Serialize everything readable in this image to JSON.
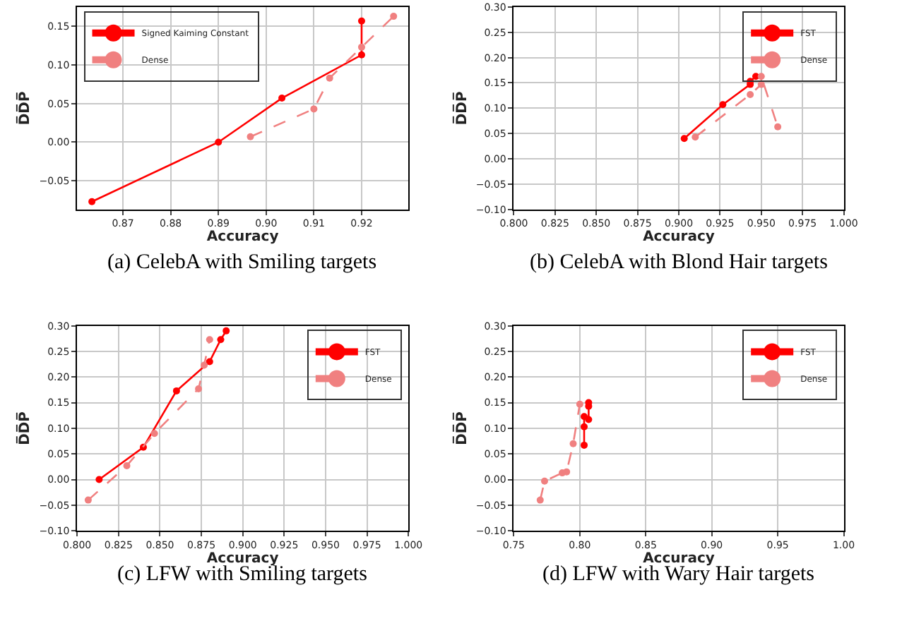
{
  "chart_data": [
    {
      "type": "line",
      "xlabel": "Accuracy",
      "ylabel": "D̅D̅P̅",
      "xlim": [
        0.8604,
        0.9298
      ],
      "ylim": [
        -0.087,
        0.175
      ],
      "xticks": [
        {
          "value": 0.87,
          "label": "0.87"
        },
        {
          "value": 0.88,
          "label": "0.88"
        },
        {
          "value": 0.89,
          "label": "0.89"
        },
        {
          "value": 0.9,
          "label": "0.90"
        },
        {
          "value": 0.91,
          "label": "0.91"
        },
        {
          "value": 0.92,
          "label": "0.92"
        }
      ],
      "yticks": [
        {
          "value": -0.05,
          "label": "−0.05"
        },
        {
          "value": 0.0,
          "label": "0.00"
        },
        {
          "value": 0.05,
          "label": "0.05"
        },
        {
          "value": 0.1,
          "label": "0.10"
        },
        {
          "value": 0.15,
          "label": "0.15"
        }
      ],
      "grid": true,
      "legend": "top left",
      "marker": "circle",
      "annotations": [
        "(a) CelebA with Smiling targets"
      ],
      "series": [
        {
          "name": "Signed Kaiming Constant",
          "color": "#ff0000",
          "line_style": "solid",
          "x": [
            0.8635,
            0.89,
            0.9033,
            0.92,
            0.92
          ],
          "values": [
            -0.077,
            0.0,
            0.057,
            0.113,
            0.157
          ]
        },
        {
          "name": "Dense",
          "color": "#f08080",
          "line_style": "dashed",
          "x": [
            0.8967,
            0.91,
            0.9133,
            0.92,
            0.9267
          ],
          "values": [
            0.007,
            0.043,
            0.083,
            0.123,
            0.163
          ]
        }
      ]
    },
    {
      "type": "line",
      "xlabel": "Accuracy",
      "ylabel": "D̅D̅P̅",
      "xlim": [
        0.8,
        1.0
      ],
      "ylim": [
        -0.1,
        0.3
      ],
      "xticks": [
        {
          "value": 0.8,
          "label": "0.800"
        },
        {
          "value": 0.825,
          "label": "0.825"
        },
        {
          "value": 0.85,
          "label": "0.850"
        },
        {
          "value": 0.875,
          "label": "0.875"
        },
        {
          "value": 0.9,
          "label": "0.900"
        },
        {
          "value": 0.925,
          "label": "0.925"
        },
        {
          "value": 0.95,
          "label": "0.950"
        },
        {
          "value": 0.975,
          "label": "0.975"
        },
        {
          "value": 1.0,
          "label": "1.000"
        }
      ],
      "yticks": [
        {
          "value": -0.1,
          "label": "−0.10"
        },
        {
          "value": -0.05,
          "label": "−0.05"
        },
        {
          "value": 0.0,
          "label": "0.00"
        },
        {
          "value": 0.05,
          "label": "0.05"
        },
        {
          "value": 0.1,
          "label": "0.10"
        },
        {
          "value": 0.15,
          "label": "0.15"
        },
        {
          "value": 0.2,
          "label": "0.20"
        },
        {
          "value": 0.25,
          "label": "0.25"
        },
        {
          "value": 0.3,
          "label": "0.30"
        }
      ],
      "grid": true,
      "legend": "top right",
      "marker": "circle",
      "annotations": [
        "(b) CelebA with Blond Hair targets"
      ],
      "series": [
        {
          "name": "FST",
          "color": "#ff0000",
          "line_style": "solid",
          "x": [
            0.9033,
            0.9267,
            0.9433,
            0.9433,
            0.9467
          ],
          "values": [
            0.04,
            0.107,
            0.147,
            0.153,
            0.163
          ]
        },
        {
          "name": "Dense",
          "color": "#f08080",
          "line_style": "dashed",
          "x": [
            0.91,
            0.9433,
            0.95,
            0.95,
            0.96
          ],
          "values": [
            0.043,
            0.127,
            0.147,
            0.163,
            0.063
          ]
        }
      ]
    },
    {
      "type": "line",
      "xlabel": "Accuracy",
      "ylabel": "D̅D̅P̅",
      "xlim": [
        0.8,
        1.0
      ],
      "ylim": [
        -0.1,
        0.3
      ],
      "xticks": [
        {
          "value": 0.8,
          "label": "0.800"
        },
        {
          "value": 0.825,
          "label": "0.825"
        },
        {
          "value": 0.85,
          "label": "0.850"
        },
        {
          "value": 0.875,
          "label": "0.875"
        },
        {
          "value": 0.9,
          "label": "0.900"
        },
        {
          "value": 0.925,
          "label": "0.925"
        },
        {
          "value": 0.95,
          "label": "0.950"
        },
        {
          "value": 0.975,
          "label": "0.975"
        },
        {
          "value": 1.0,
          "label": "1.000"
        }
      ],
      "yticks": [
        {
          "value": -0.1,
          "label": "−0.10"
        },
        {
          "value": -0.05,
          "label": "−0.05"
        },
        {
          "value": 0.0,
          "label": "0.00"
        },
        {
          "value": 0.05,
          "label": "0.05"
        },
        {
          "value": 0.1,
          "label": "0.10"
        },
        {
          "value": 0.15,
          "label": "0.15"
        },
        {
          "value": 0.2,
          "label": "0.20"
        },
        {
          "value": 0.25,
          "label": "0.25"
        },
        {
          "value": 0.3,
          "label": "0.30"
        }
      ],
      "grid": true,
      "legend": "top right",
      "marker": "circle",
      "annotations": [
        "(c) LFW with Smiling targets"
      ],
      "series": [
        {
          "name": "FST",
          "color": "#ff0000",
          "line_style": "solid",
          "x": [
            0.8133,
            0.84,
            0.86,
            0.88,
            0.8867,
            0.89
          ],
          "values": [
            0.0,
            0.063,
            0.173,
            0.23,
            0.273,
            0.29
          ]
        },
        {
          "name": "Dense",
          "color": "#f08080",
          "line_style": "dashed",
          "x": [
            0.8067,
            0.83,
            0.8467,
            0.8733,
            0.8767,
            0.88
          ],
          "values": [
            -0.04,
            0.027,
            0.09,
            0.177,
            0.223,
            0.273
          ]
        }
      ]
    },
    {
      "type": "line",
      "xlabel": "Accuracy",
      "ylabel": "D̅D̅P̅",
      "xlim": [
        0.75,
        1.0
      ],
      "ylim": [
        -0.1,
        0.3
      ],
      "xticks": [
        {
          "value": 0.75,
          "label": "0.75"
        },
        {
          "value": 0.8,
          "label": "0.80"
        },
        {
          "value": 0.85,
          "label": "0.85"
        },
        {
          "value": 0.9,
          "label": "0.90"
        },
        {
          "value": 0.95,
          "label": "0.95"
        },
        {
          "value": 1.0,
          "label": "1.00"
        }
      ],
      "yticks": [
        {
          "value": -0.1,
          "label": "−0.10"
        },
        {
          "value": -0.05,
          "label": "−0.05"
        },
        {
          "value": 0.0,
          "label": "0.00"
        },
        {
          "value": 0.05,
          "label": "0.05"
        },
        {
          "value": 0.1,
          "label": "0.10"
        },
        {
          "value": 0.15,
          "label": "0.15"
        },
        {
          "value": 0.2,
          "label": "0.20"
        },
        {
          "value": 0.25,
          "label": "0.25"
        },
        {
          "value": 0.3,
          "label": "0.30"
        }
      ],
      "grid": true,
      "legend": "top right",
      "marker": "circle",
      "annotations": [
        "(d) LFW with Wary Hair targets"
      ],
      "series": [
        {
          "name": "FST",
          "color": "#ff0000",
          "line_style": "solid",
          "x": [
            0.8033,
            0.8033,
            0.8033,
            0.8067,
            0.8067,
            0.8067
          ],
          "values": [
            0.067,
            0.103,
            0.123,
            0.117,
            0.143,
            0.15
          ]
        },
        {
          "name": "Dense",
          "color": "#f08080",
          "line_style": "dashed",
          "x": [
            0.77,
            0.7733,
            0.7867,
            0.79,
            0.795,
            0.8
          ],
          "values": [
            -0.04,
            -0.003,
            0.013,
            0.015,
            0.07,
            0.147
          ]
        }
      ]
    }
  ]
}
